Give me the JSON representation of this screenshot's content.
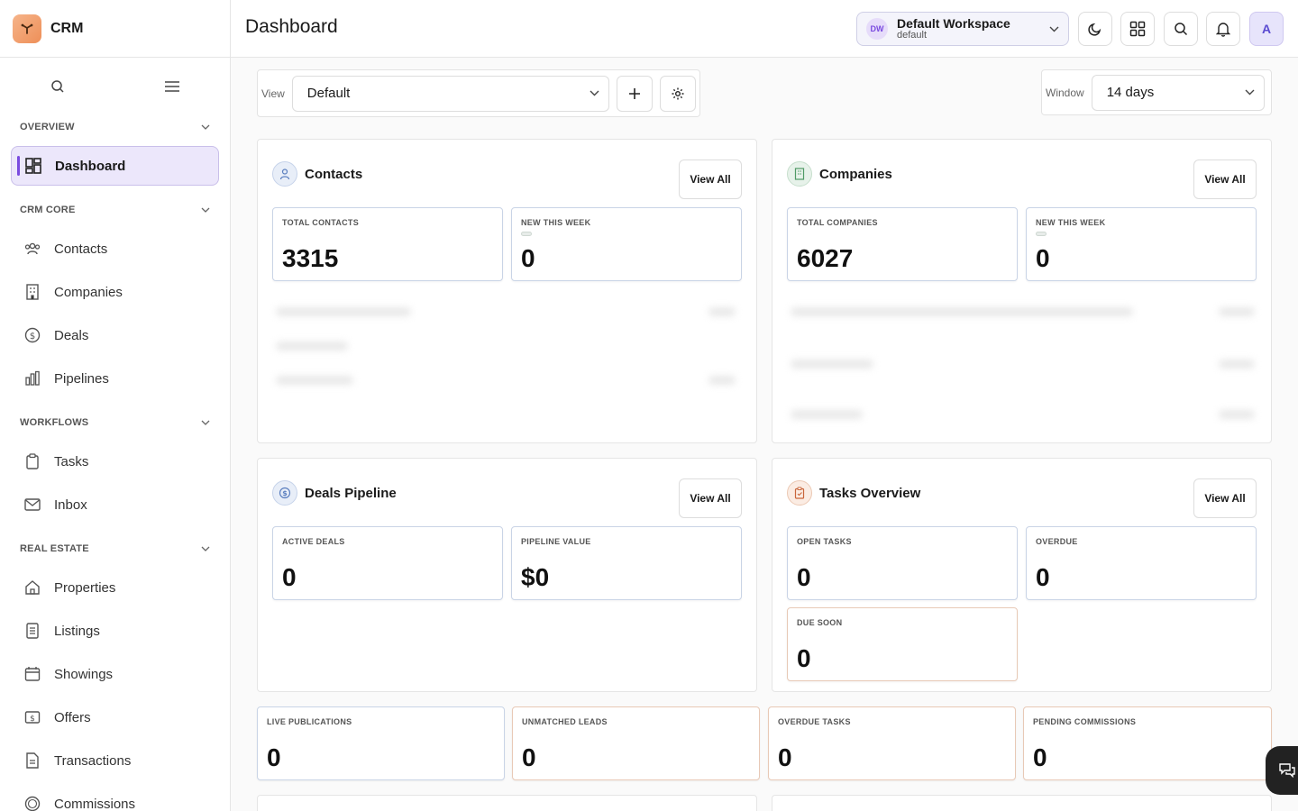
{
  "app": {
    "name": "CRM"
  },
  "sidebar": {
    "sections": [
      {
        "label": "OVERVIEW"
      },
      {
        "label": "CRM CORE"
      },
      {
        "label": "WORKFLOWS"
      },
      {
        "label": "REAL ESTATE"
      }
    ],
    "items": [
      {
        "label": "Dashboard",
        "icon": "dashboard-icon",
        "active": true
      },
      {
        "label": "Contacts",
        "icon": "people-icon"
      },
      {
        "label": "Companies",
        "icon": "building-icon"
      },
      {
        "label": "Deals",
        "icon": "dollar-circle-icon"
      },
      {
        "label": "Pipelines",
        "icon": "bar-chart-icon"
      },
      {
        "label": "Tasks",
        "icon": "clipboard-icon"
      },
      {
        "label": "Inbox",
        "icon": "mail-icon"
      },
      {
        "label": "Properties",
        "icon": "house-icon"
      },
      {
        "label": "Listings",
        "icon": "document-list-icon"
      },
      {
        "label": "Showings",
        "icon": "calendar-icon"
      },
      {
        "label": "Offers",
        "icon": "banknote-icon"
      },
      {
        "label": "Transactions",
        "icon": "file-icon"
      },
      {
        "label": "Commissions",
        "icon": "coin-icon"
      }
    ]
  },
  "header": {
    "title": "Dashboard",
    "workspace": {
      "badge": "DW",
      "name": "Default Workspace",
      "slug": "default"
    },
    "avatar": "A"
  },
  "toolbar": {
    "view_label": "View",
    "view_value": "Default",
    "window_label": "Window",
    "window_value": "14 days"
  },
  "cards": {
    "contacts": {
      "title": "Contacts",
      "view_all": "View All",
      "stats": [
        {
          "label": "TOTAL CONTACTS",
          "value": "3315"
        },
        {
          "label": "NEW THIS WEEK",
          "value": "0"
        }
      ]
    },
    "companies": {
      "title": "Companies",
      "view_all": "View All",
      "stats": [
        {
          "label": "TOTAL COMPANIES",
          "value": "6027"
        },
        {
          "label": "NEW THIS WEEK",
          "value": "0"
        }
      ]
    },
    "deals": {
      "title": "Deals Pipeline",
      "view_all": "View All",
      "stats": [
        {
          "label": "ACTIVE DEALS",
          "value": "0"
        },
        {
          "label": "PIPELINE VALUE",
          "value": "$0"
        }
      ]
    },
    "tasks": {
      "title": "Tasks Overview",
      "view_all": "View All",
      "stats": [
        {
          "label": "OPEN TASKS",
          "value": "0"
        },
        {
          "label": "OVERDUE",
          "value": "0"
        },
        {
          "label": "DUE SOON",
          "value": "0"
        }
      ]
    }
  },
  "kpis": [
    {
      "label": "LIVE PUBLICATIONS",
      "value": "0"
    },
    {
      "label": "UNMATCHED LEADS",
      "value": "0"
    },
    {
      "label": "OVERDUE TASKS",
      "value": "0"
    },
    {
      "label": "PENDING COMMISSIONS",
      "value": "0"
    }
  ],
  "colors": {
    "accent": "#7a4be0",
    "brand": "#ee8f58"
  }
}
